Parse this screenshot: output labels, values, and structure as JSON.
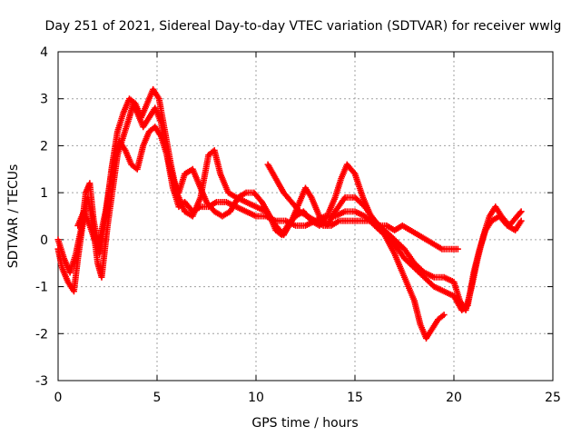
{
  "chart_data": {
    "type": "scatter",
    "title": "Day 251 of 2021, Sidereal Day-to-day VTEC variation (SDTVAR) for receiver wwlg",
    "xlabel": "GPS time / hours",
    "ylabel": "SDTVAR / TECUs",
    "xlim": [
      0,
      25
    ],
    "ylim": [
      -3,
      4
    ],
    "xticks": [
      "0",
      "5",
      "10",
      "15",
      "20",
      "25"
    ],
    "yticks": [
      "-3",
      "-2",
      "-1",
      "0",
      "1",
      "2",
      "3",
      "4"
    ],
    "grid": true,
    "marker": "+",
    "color": "#ff0000",
    "series": [
      {
        "name": "track-1",
        "points": [
          [
            0.0,
            -0.2
          ],
          [
            0.2,
            -0.6
          ],
          [
            0.5,
            -0.9
          ],
          [
            0.8,
            -1.1
          ],
          [
            1.0,
            -0.4
          ],
          [
            1.2,
            0.2
          ],
          [
            1.5,
            0.9
          ],
          [
            1.7,
            0.5
          ],
          [
            2.0,
            -0.5
          ],
          [
            2.2,
            -0.8
          ],
          [
            2.5,
            0.3
          ],
          [
            2.8,
            1.2
          ],
          [
            3.0,
            1.8
          ],
          [
            3.3,
            2.2
          ],
          [
            3.6,
            2.6
          ],
          [
            3.8,
            2.9
          ],
          [
            4.0,
            2.7
          ],
          [
            4.3,
            2.4
          ],
          [
            4.6,
            2.6
          ],
          [
            4.9,
            2.8
          ],
          [
            5.2,
            2.5
          ],
          [
            5.5,
            1.8
          ],
          [
            5.8,
            1.1
          ],
          [
            6.1,
            0.7
          ],
          [
            6.4,
            0.8
          ],
          [
            6.8,
            0.6
          ],
          [
            7.2,
            0.7
          ],
          [
            7.6,
            0.7
          ],
          [
            8.0,
            0.8
          ],
          [
            8.5,
            0.8
          ],
          [
            9.0,
            0.7
          ],
          [
            9.5,
            0.6
          ],
          [
            10.0,
            0.5
          ],
          [
            10.5,
            0.5
          ],
          [
            11.0,
            0.4
          ],
          [
            11.5,
            0.4
          ],
          [
            12.0,
            0.3
          ],
          [
            12.5,
            0.3
          ],
          [
            13.0,
            0.4
          ],
          [
            13.5,
            0.5
          ],
          [
            14.0,
            0.5
          ],
          [
            14.5,
            0.6
          ],
          [
            15.0,
            0.6
          ],
          [
            15.5,
            0.5
          ],
          [
            16.0,
            0.3
          ],
          [
            16.5,
            0.1
          ],
          [
            17.0,
            -0.3
          ],
          [
            17.5,
            -0.8
          ],
          [
            18.0,
            -1.3
          ],
          [
            18.3,
            -1.8
          ],
          [
            18.6,
            -2.1
          ],
          [
            18.9,
            -1.9
          ],
          [
            19.2,
            -1.7
          ],
          [
            19.5,
            -1.6
          ]
        ]
      },
      {
        "name": "track-2",
        "points": [
          [
            0.0,
            0.0
          ],
          [
            0.3,
            -0.4
          ],
          [
            0.6,
            -0.7
          ],
          [
            0.9,
            -0.3
          ],
          [
            1.2,
            0.3
          ],
          [
            1.4,
            1.0
          ],
          [
            1.6,
            1.2
          ],
          [
            1.8,
            0.4
          ],
          [
            2.1,
            -0.3
          ],
          [
            2.4,
            0.5
          ],
          [
            2.7,
            1.5
          ],
          [
            3.0,
            2.3
          ],
          [
            3.3,
            2.7
          ],
          [
            3.6,
            3.0
          ],
          [
            3.9,
            2.9
          ],
          [
            4.2,
            2.6
          ],
          [
            4.5,
            2.9
          ],
          [
            4.8,
            3.2
          ],
          [
            5.1,
            3.0
          ],
          [
            5.4,
            2.3
          ],
          [
            5.7,
            1.6
          ],
          [
            6.0,
            1.0
          ],
          [
            6.4,
            0.6
          ],
          [
            6.8,
            0.5
          ],
          [
            7.2,
            0.9
          ],
          [
            7.6,
            1.8
          ],
          [
            7.9,
            1.9
          ],
          [
            8.2,
            1.4
          ],
          [
            8.6,
            1.0
          ],
          [
            9.0,
            0.9
          ],
          [
            9.5,
            0.8
          ],
          [
            10.0,
            0.7
          ],
          [
            10.5,
            0.6
          ],
          [
            11.0,
            0.3
          ],
          [
            11.4,
            0.1
          ],
          [
            11.8,
            0.4
          ],
          [
            12.2,
            0.8
          ],
          [
            12.5,
            1.1
          ],
          [
            12.8,
            0.9
          ],
          [
            13.2,
            0.5
          ],
          [
            13.6,
            0.3
          ],
          [
            14.0,
            0.6
          ],
          [
            14.5,
            0.9
          ],
          [
            15.0,
            0.9
          ],
          [
            15.5,
            0.7
          ],
          [
            16.0,
            0.4
          ],
          [
            16.5,
            0.2
          ],
          [
            17.0,
            0.0
          ],
          [
            17.5,
            -0.2
          ],
          [
            18.0,
            -0.5
          ],
          [
            18.5,
            -0.7
          ],
          [
            19.0,
            -0.8
          ],
          [
            19.5,
            -0.8
          ],
          [
            20.0,
            -0.9
          ],
          [
            20.3,
            -1.3
          ],
          [
            20.6,
            -1.5
          ],
          [
            20.9,
            -1.0
          ],
          [
            21.2,
            -0.4
          ],
          [
            21.5,
            0.1
          ],
          [
            21.8,
            0.5
          ],
          [
            22.1,
            0.7
          ],
          [
            22.4,
            0.5
          ],
          [
            22.8,
            0.3
          ],
          [
            23.2,
            0.5
          ],
          [
            23.4,
            0.6
          ]
        ]
      },
      {
        "name": "track-3",
        "points": [
          [
            1.0,
            0.3
          ],
          [
            1.3,
            0.6
          ],
          [
            1.6,
            0.3
          ],
          [
            2.0,
            -0.2
          ],
          [
            2.4,
            0.6
          ],
          [
            2.8,
            1.7
          ],
          [
            3.1,
            2.1
          ],
          [
            3.4,
            1.9
          ],
          [
            3.7,
            1.6
          ],
          [
            4.0,
            1.5
          ],
          [
            4.3,
            2.0
          ],
          [
            4.6,
            2.3
          ],
          [
            4.9,
            2.4
          ],
          [
            5.2,
            2.2
          ],
          [
            5.5,
            1.8
          ],
          [
            5.8,
            1.3
          ],
          [
            6.1,
            1.0
          ],
          [
            6.4,
            1.4
          ],
          [
            6.8,
            1.5
          ],
          [
            7.1,
            1.2
          ],
          [
            7.5,
            0.8
          ],
          [
            7.9,
            0.6
          ],
          [
            8.3,
            0.5
          ],
          [
            8.7,
            0.6
          ],
          [
            9.1,
            0.9
          ],
          [
            9.5,
            1.0
          ],
          [
            9.9,
            1.0
          ],
          [
            10.3,
            0.8
          ],
          [
            10.7,
            0.5
          ],
          [
            11.0,
            0.2
          ],
          [
            11.3,
            0.1
          ],
          [
            11.6,
            0.3
          ],
          [
            12.0,
            0.5
          ],
          [
            12.4,
            0.6
          ],
          [
            12.8,
            0.4
          ],
          [
            13.2,
            0.3
          ],
          [
            13.6,
            0.5
          ],
          [
            14.0,
            0.9
          ],
          [
            14.3,
            1.3
          ],
          [
            14.6,
            1.6
          ],
          [
            15.0,
            1.4
          ],
          [
            15.4,
            0.9
          ],
          [
            15.8,
            0.5
          ],
          [
            16.2,
            0.3
          ],
          [
            16.6,
            0.1
          ],
          [
            17.0,
            -0.1
          ],
          [
            17.5,
            -0.4
          ],
          [
            18.0,
            -0.6
          ],
          [
            18.5,
            -0.8
          ],
          [
            19.0,
            -1.0
          ],
          [
            19.5,
            -1.1
          ],
          [
            20.0,
            -1.2
          ],
          [
            20.4,
            -1.5
          ],
          [
            20.7,
            -1.4
          ],
          [
            21.0,
            -0.7
          ],
          [
            21.3,
            -0.2
          ],
          [
            21.6,
            0.2
          ],
          [
            21.9,
            0.4
          ],
          [
            22.3,
            0.5
          ],
          [
            22.7,
            0.3
          ],
          [
            23.1,
            0.2
          ],
          [
            23.4,
            0.4
          ]
        ]
      },
      {
        "name": "track-4",
        "points": [
          [
            10.6,
            1.6
          ],
          [
            11.0,
            1.3
          ],
          [
            11.4,
            1.0
          ],
          [
            11.8,
            0.8
          ],
          [
            12.2,
            0.6
          ],
          [
            12.6,
            0.5
          ],
          [
            13.0,
            0.4
          ],
          [
            13.4,
            0.3
          ],
          [
            13.8,
            0.3
          ],
          [
            14.2,
            0.4
          ],
          [
            14.6,
            0.4
          ],
          [
            15.0,
            0.4
          ],
          [
            15.4,
            0.4
          ],
          [
            15.8,
            0.4
          ],
          [
            16.2,
            0.3
          ],
          [
            16.6,
            0.3
          ],
          [
            17.0,
            0.2
          ],
          [
            17.4,
            0.3
          ],
          [
            17.8,
            0.2
          ],
          [
            18.2,
            0.1
          ],
          [
            18.6,
            0.0
          ],
          [
            19.0,
            -0.1
          ],
          [
            19.4,
            -0.2
          ],
          [
            19.8,
            -0.2
          ],
          [
            20.2,
            -0.2
          ]
        ]
      }
    ]
  }
}
